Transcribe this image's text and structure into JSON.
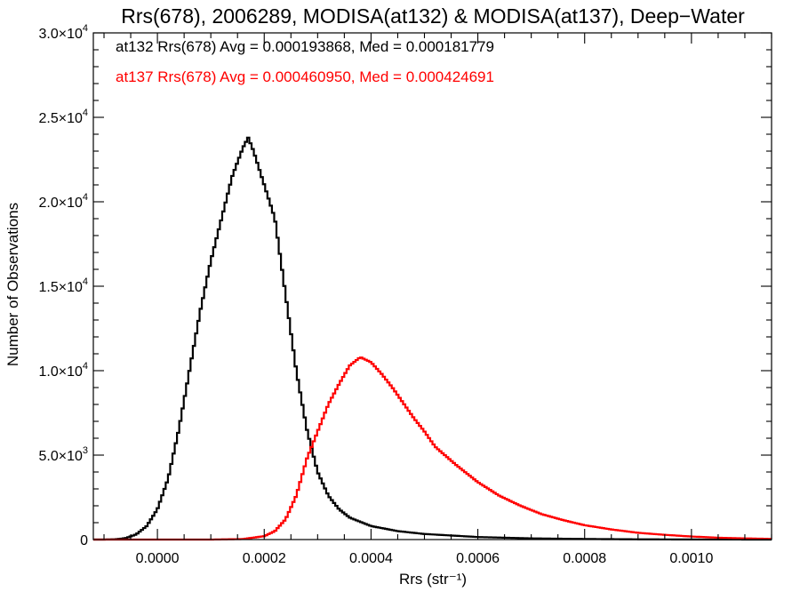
{
  "chart_data": {
    "type": "histogram",
    "title": "Rrs(678), 2006289, MODISA(at132) & MODISA(at137), Deep−Water",
    "xlabel": "Rrs (str⁻¹)",
    "ylabel": "Number of Observations",
    "xlim": [
      -0.00012,
      0.00115
    ],
    "ylim": [
      0,
      30000
    ],
    "x_ticks": [
      {
        "value": 0.0,
        "label": "0.0000"
      },
      {
        "value": 0.0002,
        "label": "0.0002"
      },
      {
        "value": 0.0004,
        "label": "0.0004"
      },
      {
        "value": 0.0006,
        "label": "0.0006"
      },
      {
        "value": 0.0008,
        "label": "0.0008"
      },
      {
        "value": 0.001,
        "label": "0.0010"
      }
    ],
    "y_ticks": [
      {
        "value": 0,
        "mant": "0",
        "exp": ""
      },
      {
        "value": 5000,
        "mant": "5.0×10",
        "exp": "3"
      },
      {
        "value": 10000,
        "mant": "1.0×10",
        "exp": "4"
      },
      {
        "value": 15000,
        "mant": "1.5×10",
        "exp": "4"
      },
      {
        "value": 20000,
        "mant": "2.0×10",
        "exp": "4"
      },
      {
        "value": 25000,
        "mant": "2.5×10",
        "exp": "4"
      },
      {
        "value": 30000,
        "mant": "3.0×10",
        "exp": "4"
      }
    ],
    "grid": false,
    "legend_position": "top-left",
    "series": [
      {
        "id": "at132",
        "color": "#000000",
        "legend": "at132 Rrs(678) Avg = 0.000193868, Med = 0.000181779",
        "points": [
          [
            -0.00012,
            0
          ],
          [
            -0.0001,
            0
          ],
          [
            -8e-05,
            15
          ],
          [
            -6e-05,
            80
          ],
          [
            -4e-05,
            300
          ],
          [
            -2e-05,
            800
          ],
          [
            0.0,
            1800
          ],
          [
            2e-05,
            3600
          ],
          [
            4e-05,
            6500
          ],
          [
            6e-05,
            10000
          ],
          [
            8e-05,
            13500
          ],
          [
            0.0001,
            16500
          ],
          [
            0.00012,
            19000
          ],
          [
            0.00014,
            21500
          ],
          [
            0.00016,
            23200
          ],
          [
            0.00017,
            23800
          ],
          [
            0.00018,
            23000
          ],
          [
            0.0002,
            21000
          ],
          [
            0.00022,
            19000
          ],
          [
            0.00024,
            14500
          ],
          [
            0.00026,
            10000
          ],
          [
            0.00028,
            6500
          ],
          [
            0.0003,
            4000
          ],
          [
            0.00032,
            2600
          ],
          [
            0.00034,
            1800
          ],
          [
            0.00036,
            1300
          ],
          [
            0.0004,
            800
          ],
          [
            0.00045,
            500
          ],
          [
            0.0005,
            330
          ],
          [
            0.0006,
            150
          ],
          [
            0.0007,
            70
          ],
          [
            0.0008,
            35
          ],
          [
            0.0009,
            15
          ],
          [
            0.001,
            5
          ],
          [
            0.00115,
            0
          ]
        ]
      },
      {
        "id": "at137",
        "color": "#ff0000",
        "legend": "at137 Rrs(678) Avg = 0.000460950, Med = 0.000424691",
        "points": [
          [
            -0.00012,
            0
          ],
          [
            0.0001,
            0
          ],
          [
            0.00016,
            30
          ],
          [
            0.0002,
            200
          ],
          [
            0.00022,
            500
          ],
          [
            0.00024,
            1200
          ],
          [
            0.00026,
            2600
          ],
          [
            0.00028,
            4800
          ],
          [
            0.0003,
            6400
          ],
          [
            0.00032,
            8000
          ],
          [
            0.00034,
            9200
          ],
          [
            0.00036,
            10300
          ],
          [
            0.00038,
            10800
          ],
          [
            0.0004,
            10500
          ],
          [
            0.00042,
            9800
          ],
          [
            0.00044,
            9000
          ],
          [
            0.00046,
            8100
          ],
          [
            0.00048,
            7200
          ],
          [
            0.0005,
            6400
          ],
          [
            0.00052,
            5500
          ],
          [
            0.00056,
            4400
          ],
          [
            0.0006,
            3400
          ],
          [
            0.00064,
            2600
          ],
          [
            0.00068,
            2000
          ],
          [
            0.00072,
            1500
          ],
          [
            0.00076,
            1150
          ],
          [
            0.0008,
            850
          ],
          [
            0.00085,
            600
          ],
          [
            0.0009,
            400
          ],
          [
            0.00095,
            280
          ],
          [
            0.001,
            180
          ],
          [
            0.00105,
            110
          ],
          [
            0.0011,
            70
          ],
          [
            0.00115,
            40
          ]
        ]
      }
    ]
  }
}
